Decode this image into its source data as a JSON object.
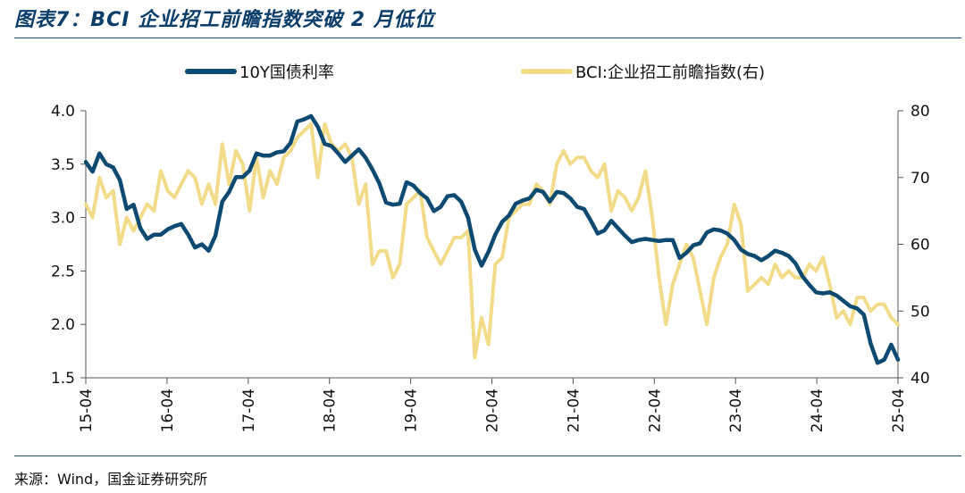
{
  "title": "图表7：BCI 企业招工前瞻指数突破 2 月低位",
  "source": "来源：Wind，国金证券研究所",
  "colors": {
    "series1": "#0d4a72",
    "series2": "#f2dc8a",
    "rule": "#1b4f7f"
  },
  "chart_data": {
    "type": "line",
    "legend": "top",
    "grid": false,
    "x_ticks": [
      "15-04",
      "16-04",
      "17-04",
      "18-04",
      "19-04",
      "20-04",
      "21-04",
      "22-04",
      "23-04",
      "24-04",
      "25-04"
    ],
    "y_left": {
      "ticks": [
        "1.5",
        "2.0",
        "2.5",
        "3.0",
        "3.5",
        "4.0"
      ],
      "lim": [
        1.5,
        4.0
      ]
    },
    "y_right": {
      "ticks": [
        "40",
        "50",
        "60",
        "70",
        "80"
      ],
      "lim": [
        40,
        80
      ]
    },
    "series": [
      {
        "name": "10Y国债利率",
        "axis": "left",
        "values": [
          3.52,
          3.43,
          3.6,
          3.5,
          3.47,
          3.35,
          3.08,
          3.12,
          2.9,
          2.8,
          2.84,
          2.84,
          2.89,
          2.92,
          2.94,
          2.84,
          2.72,
          2.75,
          2.69,
          2.83,
          3.15,
          3.24,
          3.38,
          3.38,
          3.44,
          3.6,
          3.58,
          3.58,
          3.61,
          3.62,
          3.7,
          3.9,
          3.92,
          3.95,
          3.85,
          3.69,
          3.67,
          3.6,
          3.52,
          3.58,
          3.64,
          3.56,
          3.45,
          3.32,
          3.14,
          3.12,
          3.13,
          3.33,
          3.3,
          3.23,
          3.18,
          3.06,
          3.1,
          3.2,
          3.21,
          3.15,
          3.0,
          2.7,
          2.55,
          2.68,
          2.84,
          2.96,
          3.02,
          3.13,
          3.16,
          3.18,
          3.26,
          3.24,
          3.15,
          3.24,
          3.23,
          3.18,
          3.1,
          3.08,
          2.97,
          2.85,
          2.88,
          2.97,
          2.9,
          2.83,
          2.77,
          2.79,
          2.8,
          2.79,
          2.78,
          2.79,
          2.79,
          2.62,
          2.67,
          2.74,
          2.76,
          2.86,
          2.89,
          2.88,
          2.85,
          2.79,
          2.7,
          2.66,
          2.64,
          2.6,
          2.64,
          2.69,
          2.67,
          2.64,
          2.57,
          2.45,
          2.37,
          2.3,
          2.29,
          2.3,
          2.27,
          2.22,
          2.17,
          2.15,
          2.09,
          1.82,
          1.64,
          1.67,
          1.81,
          1.67
        ]
      },
      {
        "name": "BCI:企业招工前瞻指数(右)",
        "axis": "right",
        "values": [
          66,
          64,
          70,
          67,
          68,
          60,
          64,
          62,
          64,
          66,
          65,
          71,
          68,
          67,
          69,
          71,
          70,
          66,
          69,
          66,
          75,
          69,
          74,
          72,
          65,
          73,
          67,
          71,
          69,
          73,
          74,
          76,
          77,
          78,
          70,
          78,
          75,
          74,
          75,
          73,
          66,
          69,
          57,
          59,
          59,
          55,
          57,
          66,
          67,
          68,
          61,
          59,
          57,
          59,
          61,
          61,
          62,
          43,
          49,
          45,
          57,
          58,
          64,
          65,
          66,
          66,
          69,
          68,
          66,
          72,
          74,
          72,
          73,
          73,
          71,
          70,
          72,
          65,
          68,
          67,
          65,
          67,
          71,
          64,
          55,
          48,
          54,
          57,
          60,
          58,
          53,
          48,
          55,
          58,
          60,
          66,
          63,
          53,
          54,
          55,
          54,
          57,
          55,
          56,
          55,
          55,
          57,
          56,
          58,
          54,
          49,
          50,
          48,
          52,
          52,
          50,
          51,
          51,
          49,
          48
        ]
      }
    ]
  }
}
